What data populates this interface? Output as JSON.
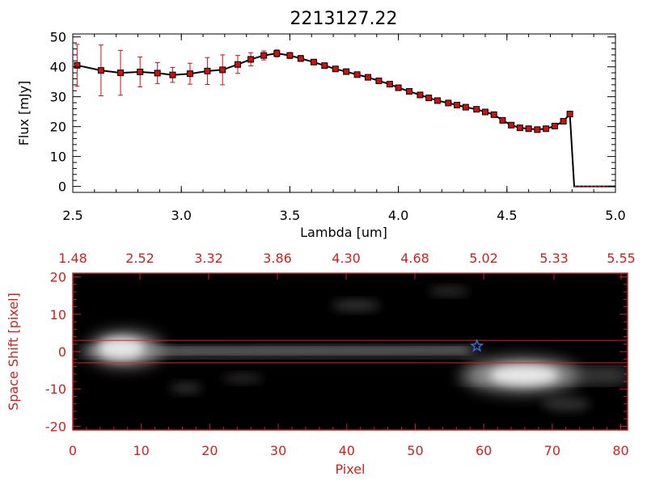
{
  "chart_data": [
    {
      "type": "line",
      "title": "2213127.22",
      "xlabel": "Lambda [um]",
      "ylabel": "Flux [mJy]",
      "xlim": [
        2.5,
        5.0
      ],
      "ylim": [
        -2,
        51
      ],
      "xticks": [
        "2.5",
        "3.0",
        "3.5",
        "4.0",
        "4.5",
        "5.0"
      ],
      "yticks": [
        "0",
        "10",
        "20",
        "30",
        "40",
        "50"
      ],
      "grid": false,
      "series": [
        {
          "x": [
            2.52,
            2.63,
            2.72,
            2.81,
            2.89,
            2.96,
            3.04,
            3.12,
            3.19,
            3.26,
            3.32,
            3.38,
            3.44,
            3.5,
            3.55,
            3.61,
            3.66,
            3.71,
            3.76,
            3.81,
            3.86,
            3.91,
            3.96,
            4.0,
            4.05,
            4.1,
            4.14,
            4.18,
            4.23,
            4.27,
            4.31,
            4.36,
            4.4,
            4.44,
            4.48,
            4.52,
            4.56,
            4.6,
            4.64,
            4.68,
            4.72,
            4.76,
            4.79
          ],
          "y": [
            40.5,
            38.8,
            38.0,
            38.3,
            37.9,
            37.3,
            37.7,
            38.6,
            39.0,
            40.8,
            42.5,
            43.8,
            44.5,
            43.8,
            42.8,
            41.6,
            40.4,
            39.3,
            38.4,
            37.4,
            36.5,
            35.3,
            34.2,
            33.0,
            31.8,
            30.6,
            29.6,
            28.7,
            27.9,
            27.2,
            26.5,
            25.8,
            24.9,
            24.0,
            22.1,
            20.5,
            19.6,
            19.3,
            19.0,
            19.3,
            20.2,
            21.8,
            24.2
          ],
          "err": [
            7,
            8.5,
            7.5,
            5,
            3.5,
            2.5,
            3.5,
            4.5,
            5,
            3,
            2.2,
            1.5,
            1.2,
            1,
            1,
            0.8,
            0.8,
            0.8,
            0.8,
            0.8,
            0.8,
            0.8,
            0.8,
            0.8,
            0.8,
            0.8,
            0.8,
            0.8,
            0.8,
            0.8,
            0.8,
            0.8,
            0.8,
            0.8,
            0.8,
            0.8,
            0.8,
            0.8,
            0.8,
            0.8,
            0.8,
            0.8,
            0.8
          ]
        }
      ]
    },
    {
      "type": "heatmap",
      "xlabel": "Pixel",
      "ylabel": "Space Shift [pixel]",
      "xlim": [
        0,
        81
      ],
      "ylim": [
        -21,
        21
      ],
      "xticks": [
        "0",
        "10",
        "20",
        "30",
        "40",
        "50",
        "60",
        "70",
        "80"
      ],
      "yticks": [
        "-20",
        "-10",
        "0",
        "10",
        "20"
      ],
      "top_xticks": [
        "1.48",
        "2.52",
        "3.32",
        "3.86",
        "4.30",
        "4.68",
        "5.02",
        "5.33",
        "5.55"
      ],
      "aperture_y": [
        3,
        -3
      ],
      "star_marker": {
        "x": 59,
        "y": 1.5
      },
      "colors": {
        "axes": "#cc2222",
        "aperture": "#dd2222",
        "star": "#2f6fd8",
        "marker": "#cc1111",
        "line": "#000000"
      }
    }
  ]
}
